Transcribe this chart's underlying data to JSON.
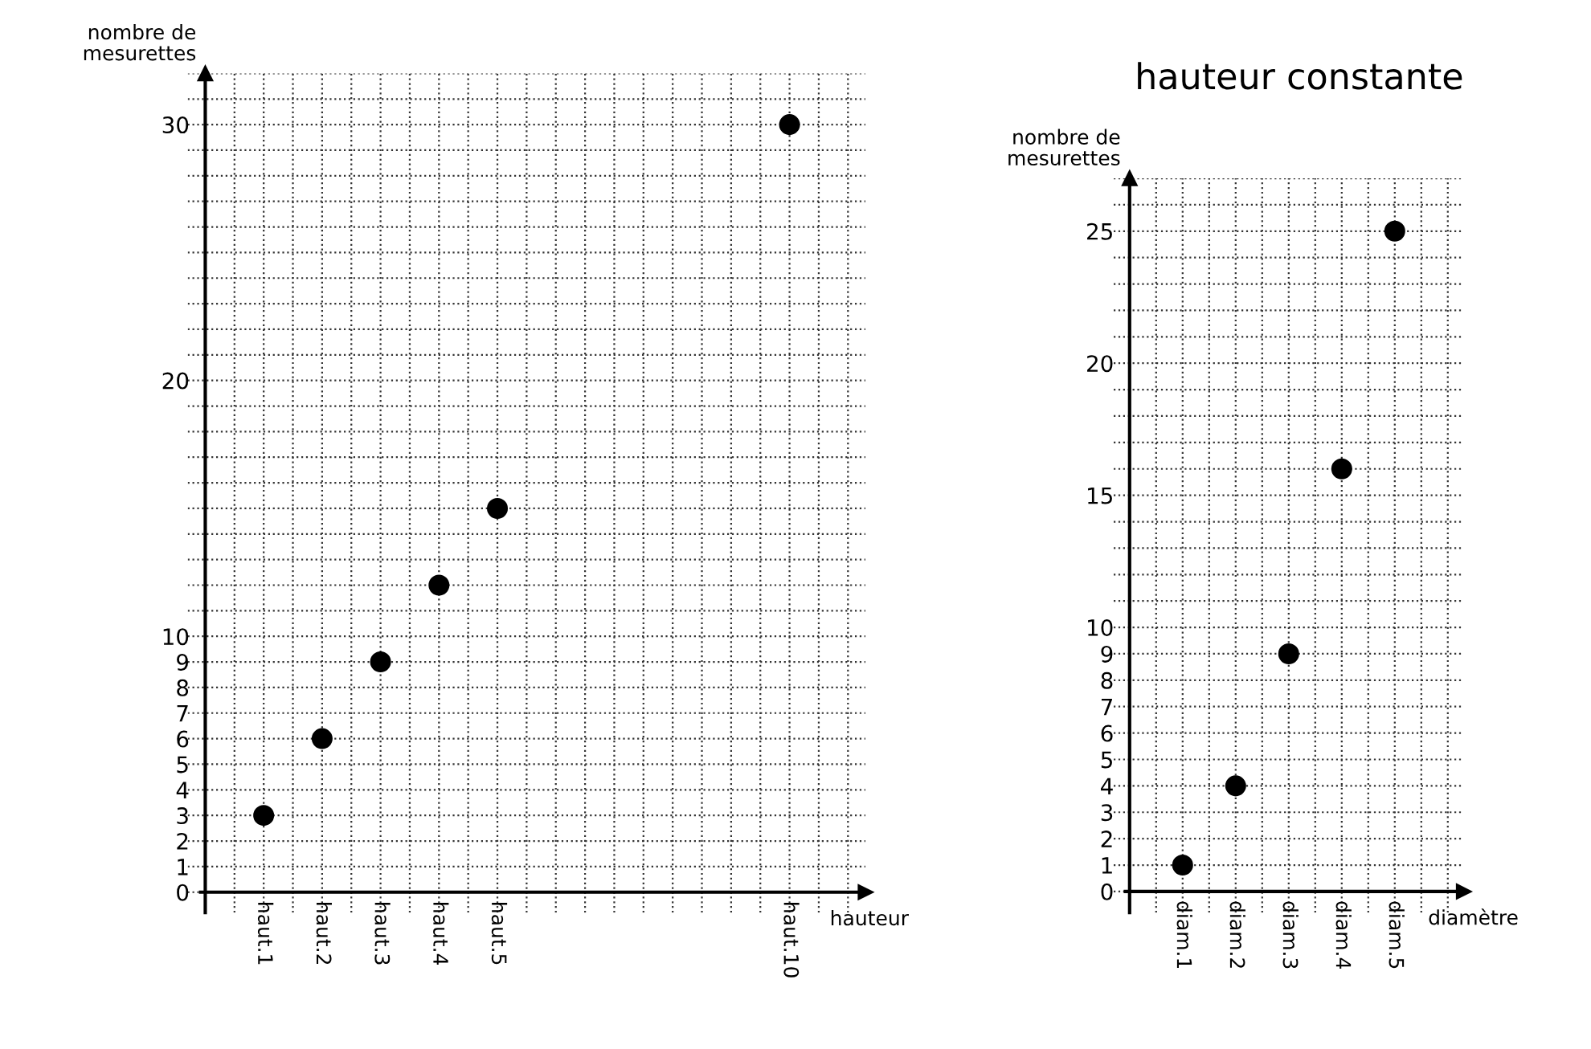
{
  "chart_data": [
    {
      "type": "scatter",
      "xlabel": "hauteur",
      "ylabel": "nombre de\nmesurettes",
      "marker": "circle",
      "grid": true,
      "categories": [
        "haut.1",
        "haut.2",
        "haut.3",
        "haut.4",
        "haut.5",
        null,
        null,
        null,
        null,
        "haut.10",
        null
      ],
      "series": [
        {
          "color": "#000000",
          "values": [
            3,
            6,
            9,
            12,
            15,
            null,
            null,
            null,
            null,
            30,
            null
          ]
        }
      ],
      "ylim": [
        -0.8,
        32
      ],
      "yticks": [
        0,
        1,
        2,
        3,
        4,
        5,
        6,
        7,
        8,
        9,
        10,
        20,
        30
      ]
    },
    {
      "type": "scatter",
      "title": "hauteur constante",
      "xlabel": "diamètre",
      "ylabel": "nombre de\nmesurettes",
      "marker": "circle",
      "grid": true,
      "categories": [
        "diam.1",
        "diam.2",
        "diam.3",
        "diam.4",
        "diam.5",
        null
      ],
      "series": [
        {
          "color": "#000000",
          "values": [
            1,
            4,
            9,
            16,
            25,
            null
          ]
        }
      ],
      "ylim": [
        -0.8,
        27
      ],
      "yticks": [
        0,
        1,
        2,
        3,
        4,
        5,
        6,
        7,
        8,
        9,
        10,
        15,
        20,
        25
      ]
    }
  ]
}
